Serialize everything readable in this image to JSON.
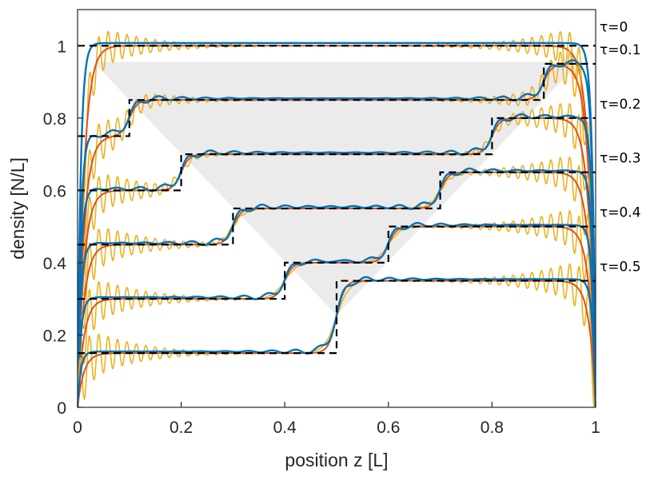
{
  "chart_data": {
    "type": "line",
    "title": "",
    "xlabel": "position z [L]",
    "ylabel": "density [N/L]",
    "xlim": [
      0,
      1
    ],
    "ylim": [
      0,
      1.1
    ],
    "xticks": [
      "0",
      "0.2",
      "0.4",
      "0.6",
      "0.8",
      "1"
    ],
    "yticks": [
      "0",
      "0.2",
      "0.4",
      "0.6",
      "0.8",
      "1"
    ],
    "grid": false,
    "legend": "none",
    "colors": {
      "step": "#000000",
      "smooth": "#d95319",
      "oscillating": "#edb120",
      "wavy": "#0072bd",
      "shade": "#ebebeb"
    },
    "curves": [
      {
        "label": "τ=0",
        "offset": 1.0,
        "low": 0,
        "high": 0,
        "front": 0.5
      },
      {
        "label": "τ=0.1",
        "offset": 0.75,
        "low": 0.0,
        "high": 0.1,
        "jump_left": 0.1,
        "jump_right": 0.9,
        "front": 0.9
      },
      {
        "label": "τ=0.2",
        "offset": 0.6,
        "low": 0.0,
        "high": 0.1,
        "jump_left": 0.2,
        "jump_right": 0.8,
        "front": 0.8
      },
      {
        "label": "τ=0.3",
        "offset": 0.45,
        "low": 0.0,
        "high": 0.1,
        "jump_left": 0.3,
        "jump_right": 0.7,
        "front": 0.7
      },
      {
        "label": "τ=0.4",
        "offset": 0.3,
        "low": 0.0,
        "high": 0.1,
        "jump_left": 0.4,
        "jump_right": 0.6,
        "front": 0.6
      },
      {
        "label": "τ=0.5",
        "offset": 0.15,
        "low": 0.0,
        "high": 0.1,
        "jump_left": 0.5,
        "jump_right": 0.5,
        "front": 0.5
      }
    ],
    "step_levels": [
      {
        "label": "τ=0",
        "segments": [
          [
            0.0,
            1.0,
            1.0
          ]
        ]
      },
      {
        "label": "τ=0.1",
        "segments": [
          [
            0.0,
            0.1,
            0.75
          ],
          [
            0.1,
            0.9,
            0.85
          ],
          [
            0.9,
            1.0,
            0.95
          ]
        ]
      },
      {
        "label": "τ=0.2",
        "segments": [
          [
            0.0,
            0.2,
            0.6
          ],
          [
            0.2,
            0.8,
            0.7
          ],
          [
            0.8,
            1.0,
            0.8
          ]
        ]
      },
      {
        "label": "τ=0.3",
        "segments": [
          [
            0.0,
            0.3,
            0.45
          ],
          [
            0.3,
            0.7,
            0.55
          ],
          [
            0.7,
            1.0,
            0.65
          ]
        ]
      },
      {
        "label": "τ=0.4",
        "segments": [
          [
            0.0,
            0.4,
            0.3
          ],
          [
            0.4,
            0.6,
            0.4
          ],
          [
            0.6,
            1.0,
            0.5
          ]
        ]
      },
      {
        "label": "τ=0.5",
        "segments": [
          [
            0.0,
            0.5,
            0.15
          ],
          [
            0.5,
            1.0,
            0.35
          ]
        ]
      }
    ]
  }
}
